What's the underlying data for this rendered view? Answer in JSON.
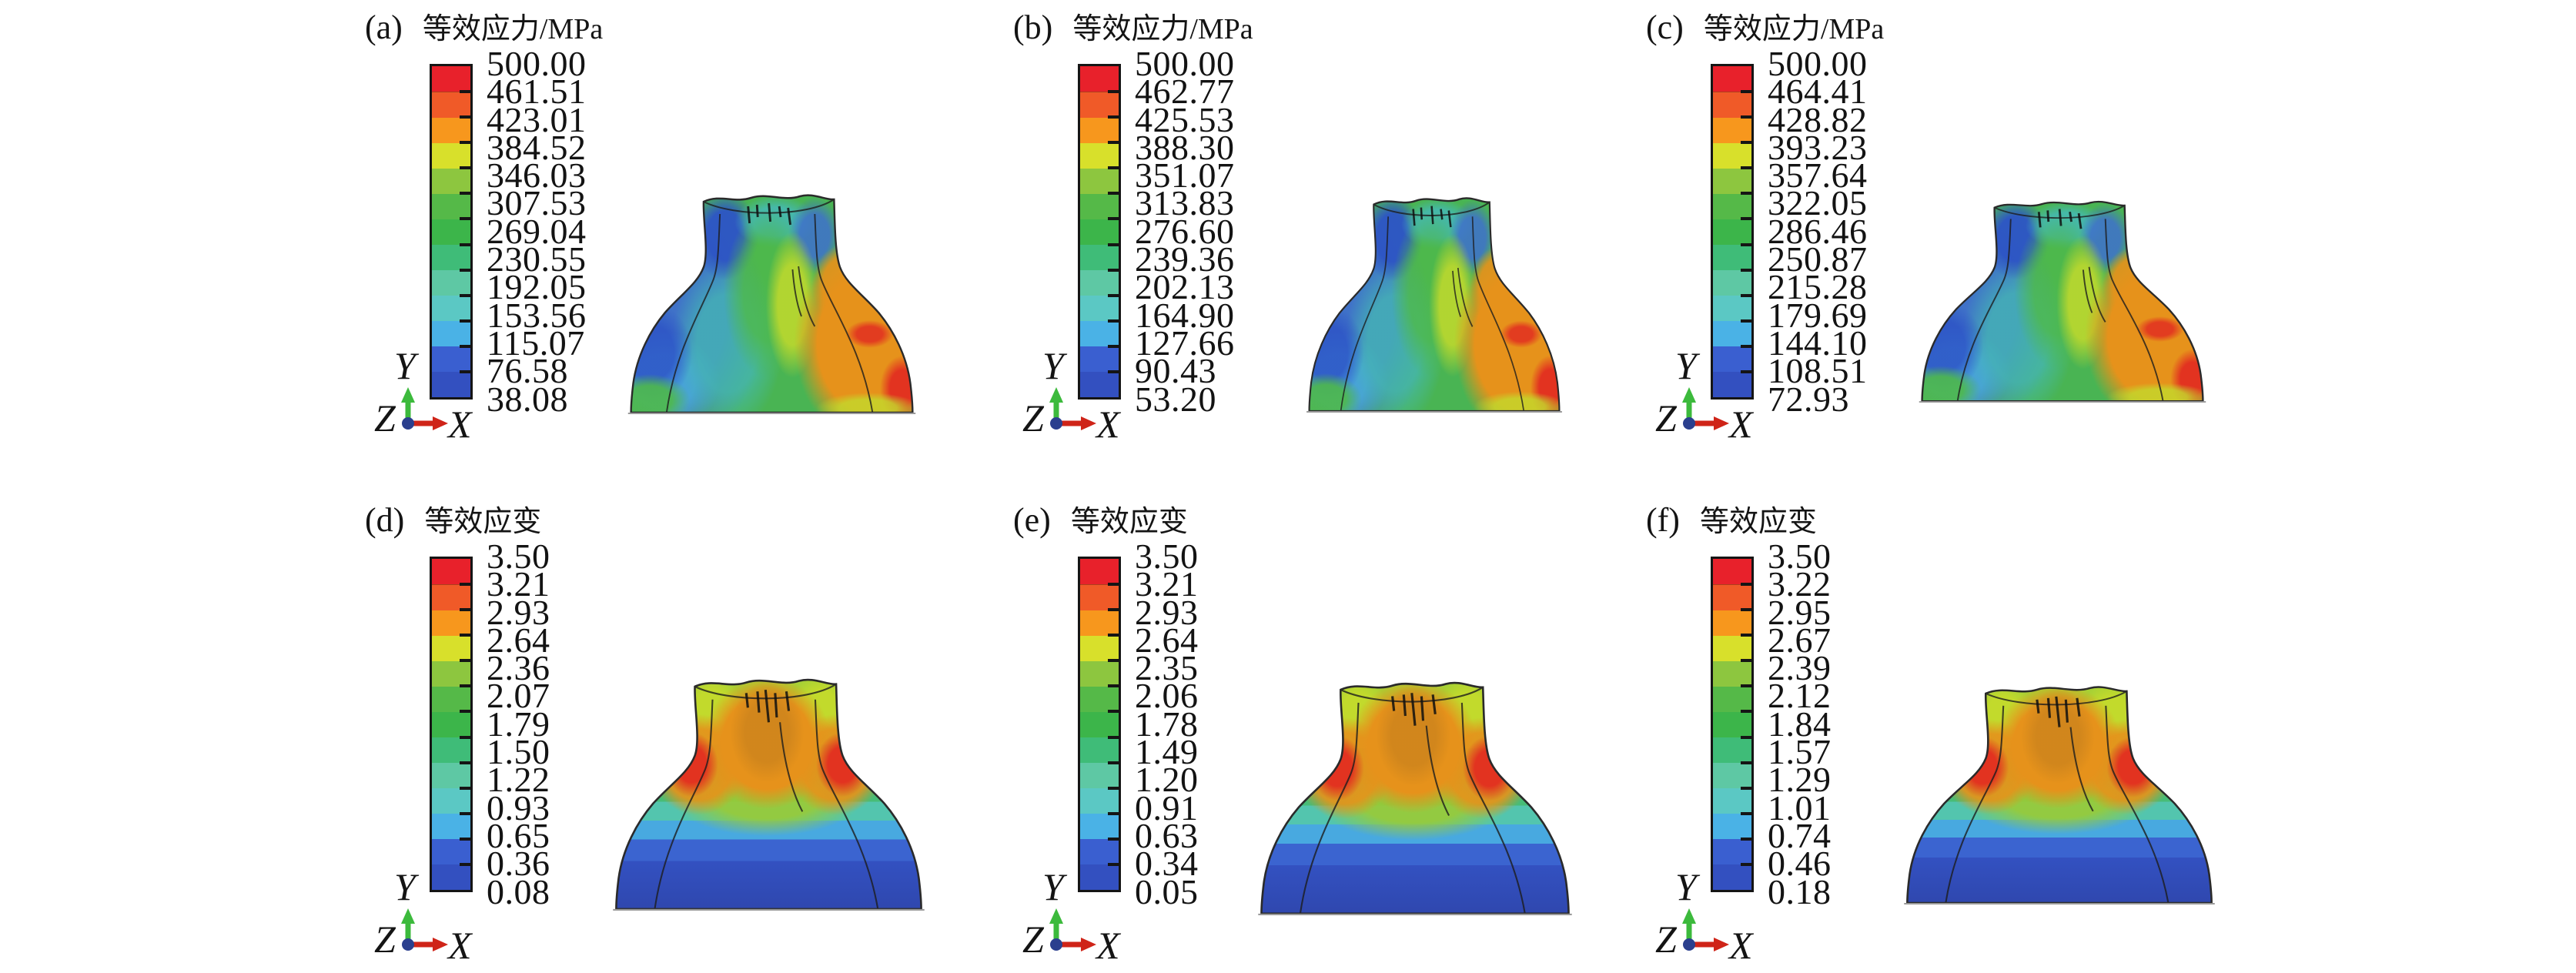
{
  "axis_triad": {
    "x": "X",
    "y": "Y",
    "z": "Z",
    "x_arrow_color": "#cf2418",
    "y_arrow_color": "#3cba3c",
    "origin_dot_color": "#2b3f8e"
  },
  "colorbar_colors": [
    "#e8212b",
    "#f05a28",
    "#f7971d",
    "#d8e02b",
    "#8dc63f",
    "#55b948",
    "#3cb54a",
    "#3fbc78",
    "#5ec8a4",
    "#5bc8c4",
    "#4ab2e6",
    "#3a5fd0",
    "#3350c0"
  ],
  "panels": [
    {
      "id": "a",
      "label": "(a)",
      "title": "等效应力/MPa",
      "part": "stress",
      "legend_values": [
        "500.00",
        "461.51",
        "423.01",
        "384.52",
        "346.03",
        "307.53",
        "269.04",
        "230.55",
        "192.05",
        "153.56",
        "115.07",
        "76.58",
        "38.08"
      ]
    },
    {
      "id": "b",
      "label": "(b)",
      "title": "等效应力/MPa",
      "part": "stress",
      "legend_values": [
        "500.00",
        "462.77",
        "425.53",
        "388.30",
        "351.07",
        "313.83",
        "276.60",
        "239.36",
        "202.13",
        "164.90",
        "127.66",
        "90.43",
        "53.20"
      ]
    },
    {
      "id": "c",
      "label": "(c)",
      "title": "等效应力/MPa",
      "part": "stress",
      "legend_values": [
        "500.00",
        "464.41",
        "428.82",
        "393.23",
        "357.64",
        "322.05",
        "286.46",
        "250.87",
        "215.28",
        "179.69",
        "144.10",
        "108.51",
        "72.93"
      ]
    },
    {
      "id": "d",
      "label": "(d)",
      "title": "等效应变",
      "part": "strain",
      "legend_values": [
        "3.50",
        "3.21",
        "2.93",
        "2.64",
        "2.36",
        "2.07",
        "1.79",
        "1.50",
        "1.22",
        "0.93",
        "0.65",
        "0.36",
        "0.08"
      ]
    },
    {
      "id": "e",
      "label": "(e)",
      "title": "等效应变",
      "part": "strain",
      "legend_values": [
        "3.50",
        "3.21",
        "2.93",
        "2.64",
        "2.35",
        "2.06",
        "1.78",
        "1.49",
        "1.20",
        "0.91",
        "0.63",
        "0.34",
        "0.05"
      ]
    },
    {
      "id": "f",
      "label": "(f)",
      "title": "等效应变",
      "part": "strain",
      "legend_values": [
        "3.50",
        "3.22",
        "2.95",
        "2.67",
        "2.39",
        "2.12",
        "1.84",
        "1.57",
        "1.29",
        "1.01",
        "0.74",
        "0.46",
        "0.18"
      ]
    }
  ],
  "chart_data": [
    {
      "type": "heatmap",
      "panel": "a",
      "title": "等效应力/MPa",
      "quantity": "equivalent stress",
      "unit": "MPa",
      "legend_levels": [
        500.0,
        461.51,
        423.01,
        384.52,
        346.03,
        307.53,
        269.04,
        230.55,
        192.05,
        153.56,
        115.07,
        76.58,
        38.08
      ],
      "range": [
        38.08,
        500.0
      ],
      "legend_position": "left"
    },
    {
      "type": "heatmap",
      "panel": "b",
      "title": "等效应力/MPa",
      "quantity": "equivalent stress",
      "unit": "MPa",
      "legend_levels": [
        500.0,
        462.77,
        425.53,
        388.3,
        351.07,
        313.83,
        276.6,
        239.36,
        202.13,
        164.9,
        127.66,
        90.43,
        53.2
      ],
      "range": [
        53.2,
        500.0
      ],
      "legend_position": "left"
    },
    {
      "type": "heatmap",
      "panel": "c",
      "title": "等效应力/MPa",
      "quantity": "equivalent stress",
      "unit": "MPa",
      "legend_levels": [
        500.0,
        464.41,
        428.82,
        393.23,
        357.64,
        322.05,
        286.46,
        250.87,
        215.28,
        179.69,
        144.1,
        108.51,
        72.93
      ],
      "range": [
        72.93,
        500.0
      ],
      "legend_position": "left"
    },
    {
      "type": "heatmap",
      "panel": "d",
      "title": "等效应变",
      "quantity": "equivalent strain",
      "unit": "",
      "legend_levels": [
        3.5,
        3.21,
        2.93,
        2.64,
        2.36,
        2.07,
        1.79,
        1.5,
        1.22,
        0.93,
        0.65,
        0.36,
        0.08
      ],
      "range": [
        0.08,
        3.5
      ],
      "legend_position": "left"
    },
    {
      "type": "heatmap",
      "panel": "e",
      "title": "等效应变",
      "quantity": "equivalent strain",
      "unit": "",
      "legend_levels": [
        3.5,
        3.21,
        2.93,
        2.64,
        2.35,
        2.06,
        1.78,
        1.49,
        1.2,
        0.91,
        0.63,
        0.34,
        0.05
      ],
      "range": [
        0.05,
        3.5
      ],
      "legend_position": "left"
    },
    {
      "type": "heatmap",
      "panel": "f",
      "title": "等效应变",
      "quantity": "equivalent strain",
      "unit": "",
      "legend_levels": [
        3.5,
        3.22,
        2.95,
        2.67,
        2.39,
        2.12,
        1.84,
        1.57,
        1.29,
        1.01,
        0.74,
        0.46,
        0.18
      ],
      "range": [
        0.18,
        3.5
      ],
      "legend_position": "left"
    }
  ]
}
